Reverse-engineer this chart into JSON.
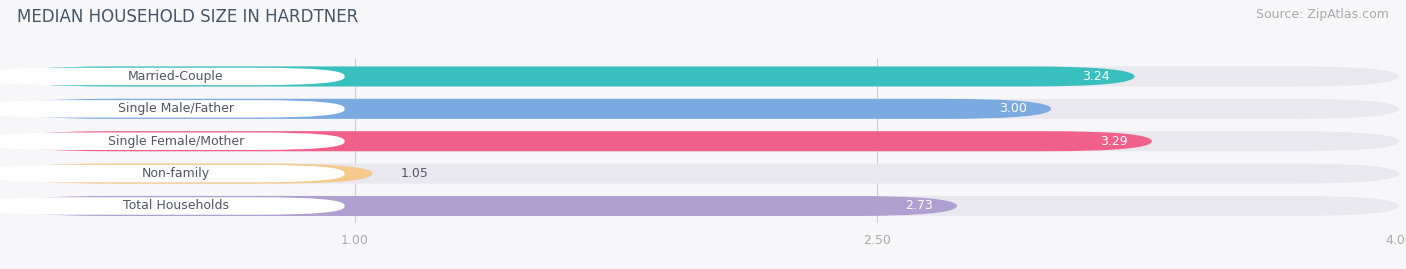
{
  "title": "MEDIAN HOUSEHOLD SIZE IN HARDTNER",
  "source": "Source: ZipAtlas.com",
  "categories": [
    "Married-Couple",
    "Single Male/Father",
    "Single Female/Mother",
    "Non-family",
    "Total Households"
  ],
  "values": [
    3.24,
    3.0,
    3.29,
    1.05,
    2.73
  ],
  "bar_colors": [
    "#3abfbf",
    "#7aaae0",
    "#f0608a",
    "#f5c98a",
    "#b0a0d0"
  ],
  "track_color": "#e8e8ee",
  "xlim_start": 0.0,
  "xlim_end": 4.0,
  "xticks": [
    1.0,
    2.5,
    4.0
  ],
  "bar_height": 0.62,
  "background_color": "#f7f7fa",
  "title_fontsize": 12,
  "source_fontsize": 9,
  "label_fontsize": 9,
  "value_fontsize": 9,
  "label_text_color": "#555566",
  "value_text_color": "#ffffff",
  "tick_label_color": "#999999",
  "title_color": "#445566"
}
